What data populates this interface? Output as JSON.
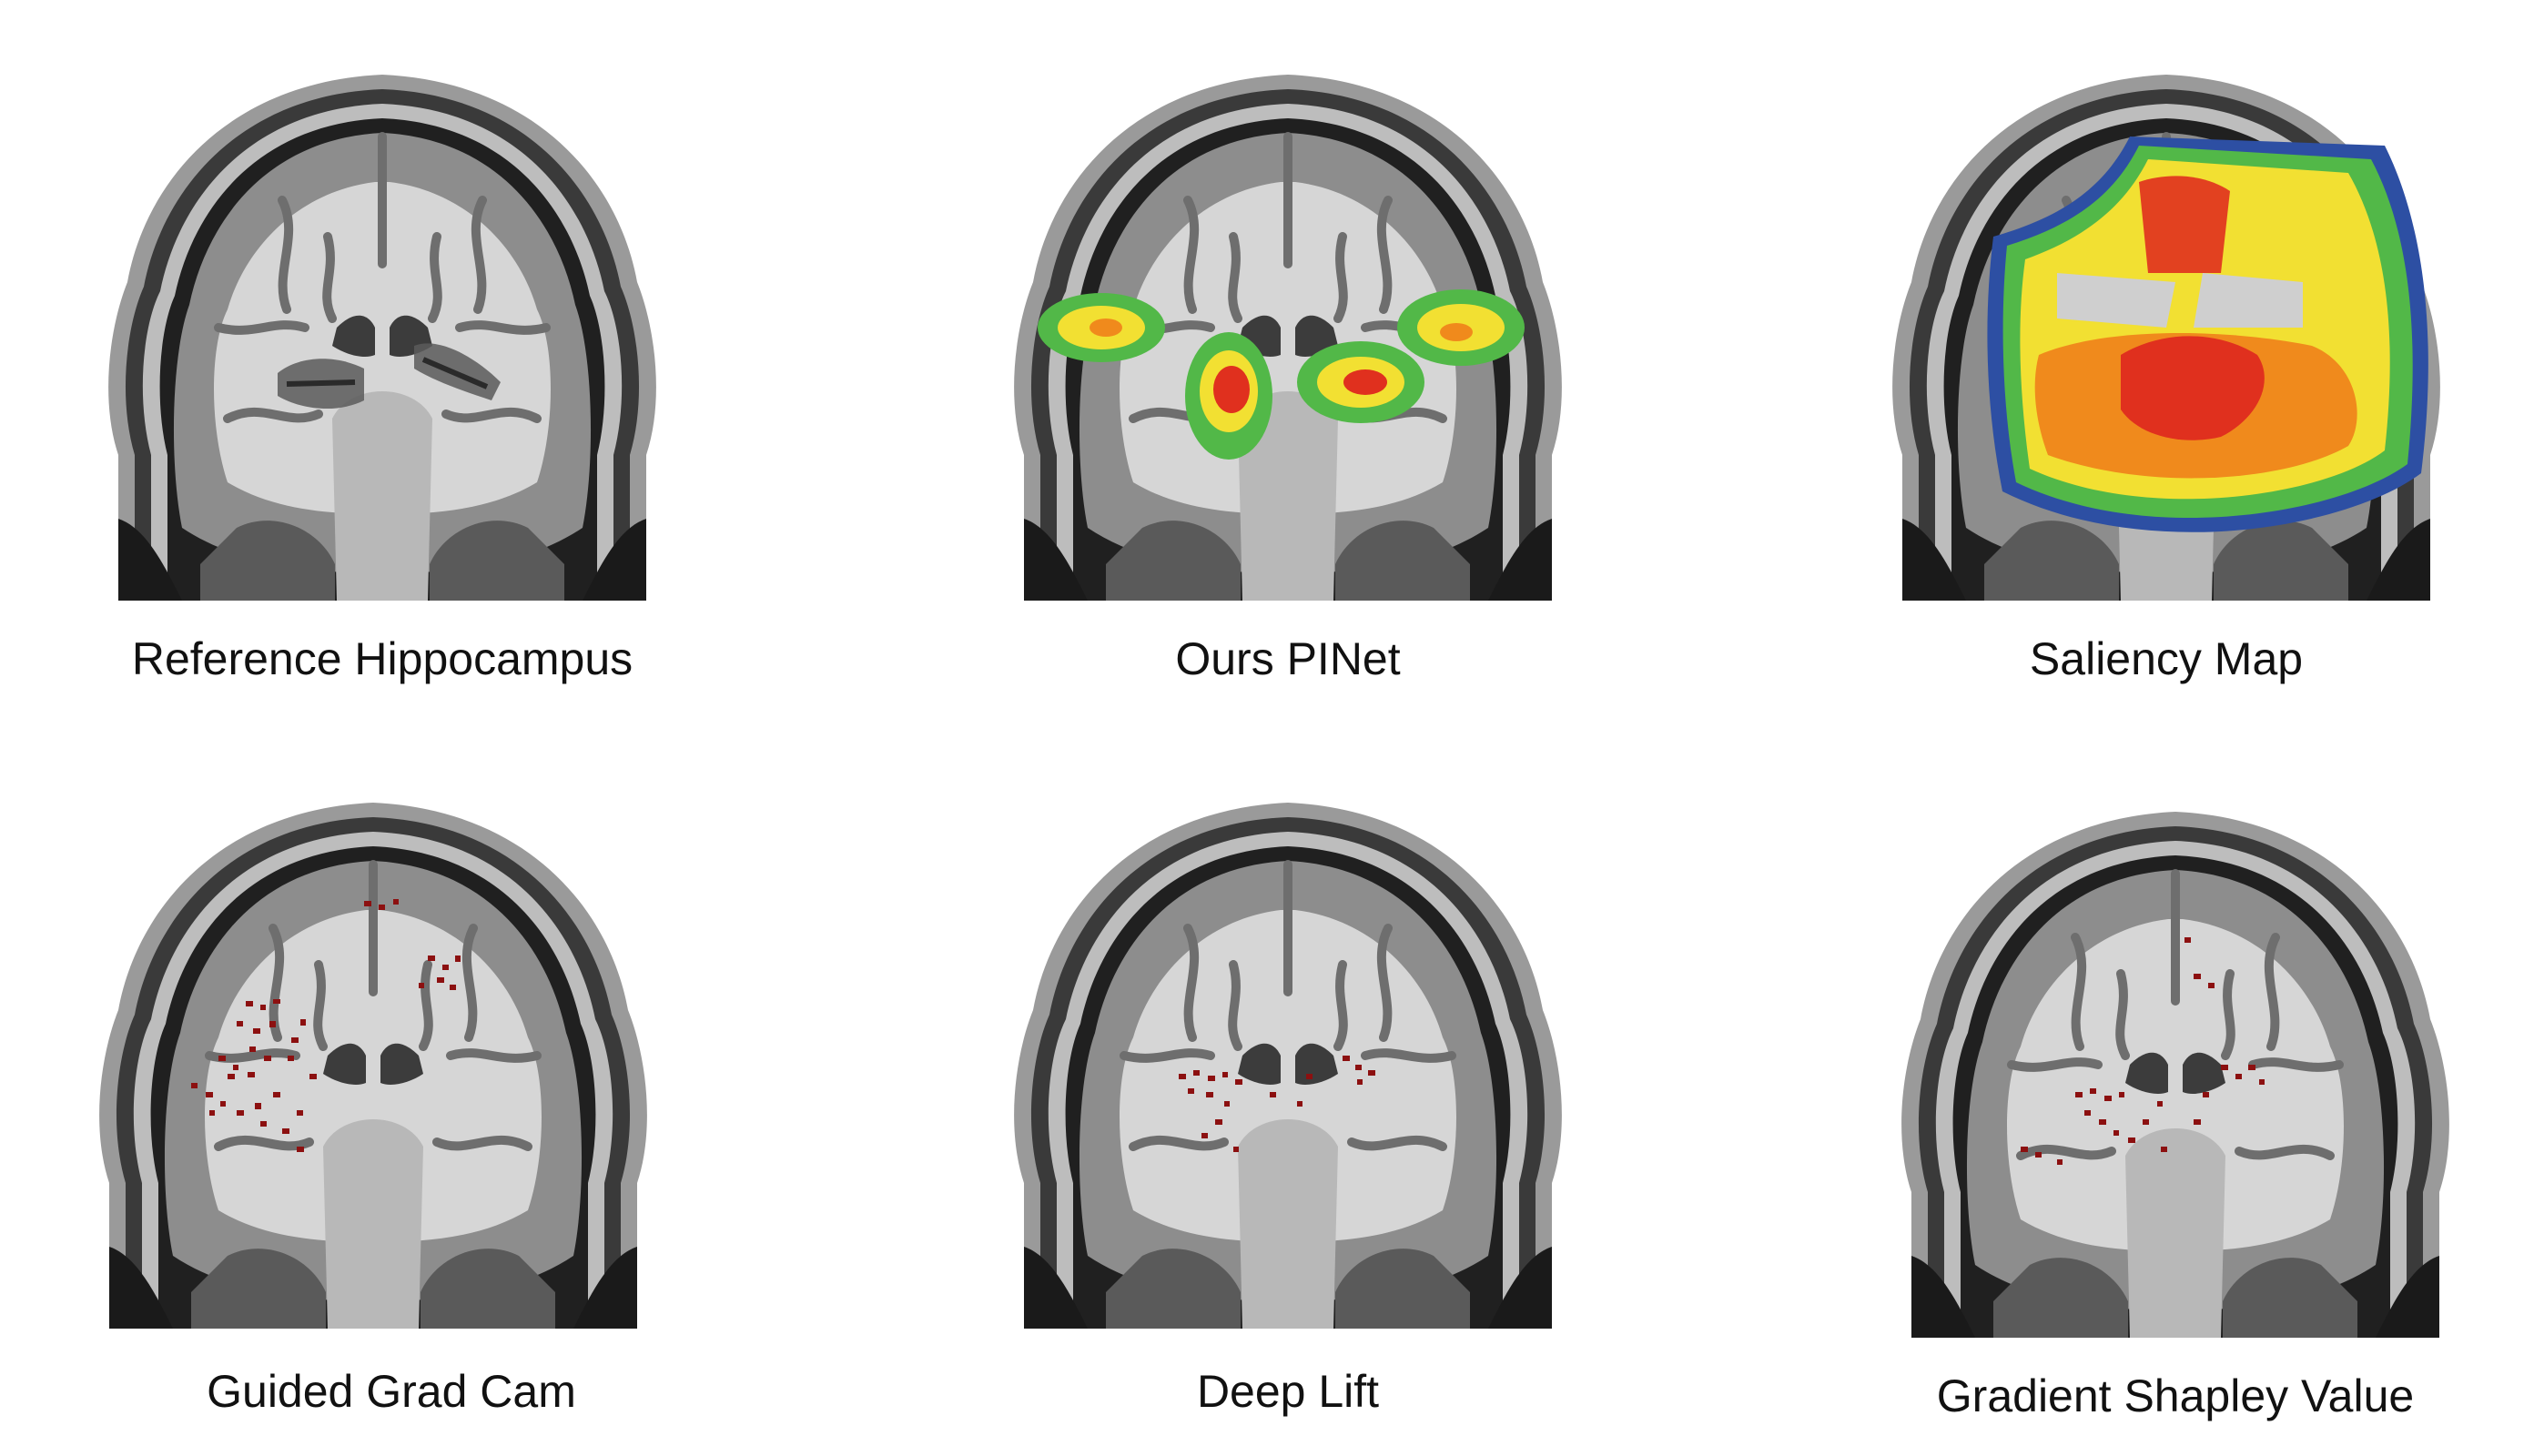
{
  "figure": {
    "panels": [
      {
        "id": "reference",
        "caption": "Reference Hippocampus",
        "overlay": "grey-hippocampus"
      },
      {
        "id": "pinet",
        "caption": "Ours PINet",
        "overlay": "heatmap-focal"
      },
      {
        "id": "saliency",
        "caption": "Saliency Map",
        "overlay": "heatmap-broad"
      },
      {
        "id": "guided-grad-cam",
        "caption": "Guided Grad Cam",
        "overlay": "red-speckle-dense"
      },
      {
        "id": "deep-lift",
        "caption": "Deep Lift",
        "overlay": "red-speckle-sparse"
      },
      {
        "id": "gradient-shapley",
        "caption": "Gradient Shapley Value",
        "overlay": "red-speckle-medium"
      }
    ],
    "colors": {
      "background": "#ffffff",
      "heat_red": "#e0301e",
      "heat_orange": "#f08a1c",
      "heat_yellow": "#f2e032",
      "heat_green": "#52b848",
      "heat_blue": "#2d4fa3",
      "speckle_red": "#8c1010"
    }
  }
}
